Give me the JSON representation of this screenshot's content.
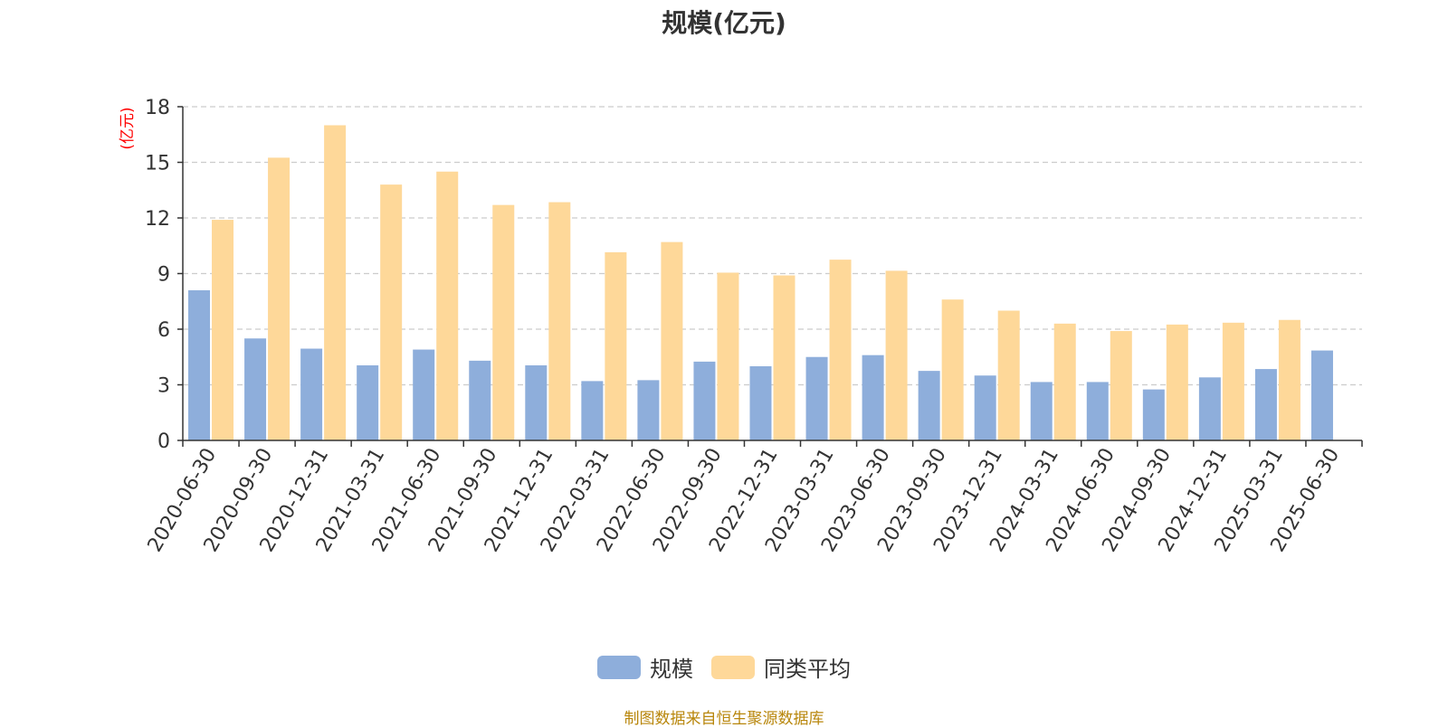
{
  "title": "规模(亿元)",
  "source_note": "制图数据来自恒生聚源数据库",
  "colors": {
    "series1": "#8eaedb",
    "series2": "#fed899",
    "axis_unit": "#ff0000",
    "source": "#b8860b"
  },
  "chart_data": {
    "type": "bar",
    "title": "规模(亿元)",
    "ylabel": "(亿元)",
    "xlabel": "",
    "ylim": [
      0,
      18
    ],
    "yticks": [
      0,
      3,
      6,
      9,
      12,
      15,
      18
    ],
    "grid": true,
    "legend_position": "bottom",
    "categories": [
      "2020-06-30",
      "2020-09-30",
      "2020-12-31",
      "2021-03-31",
      "2021-06-30",
      "2021-09-30",
      "2021-12-31",
      "2022-03-31",
      "2022-06-30",
      "2022-09-30",
      "2022-12-31",
      "2023-03-31",
      "2023-06-30",
      "2023-09-30",
      "2023-12-31",
      "2024-03-31",
      "2024-06-30",
      "2024-09-30",
      "2024-12-31",
      "2025-03-31",
      "2025-06-30"
    ],
    "series": [
      {
        "name": "规模",
        "values": [
          8.1,
          5.5,
          4.95,
          4.05,
          4.9,
          4.3,
          4.05,
          3.2,
          3.25,
          4.25,
          4.0,
          4.5,
          4.6,
          3.75,
          3.5,
          3.15,
          3.15,
          2.75,
          3.4,
          3.85,
          4.85
        ]
      },
      {
        "name": "同类平均",
        "values": [
          11.9,
          15.25,
          17.0,
          13.8,
          14.5,
          12.7,
          12.85,
          10.15,
          10.7,
          9.05,
          8.9,
          9.75,
          9.15,
          7.6,
          7.0,
          6.3,
          5.9,
          6.25,
          6.35,
          6.5,
          null
        ]
      }
    ]
  }
}
